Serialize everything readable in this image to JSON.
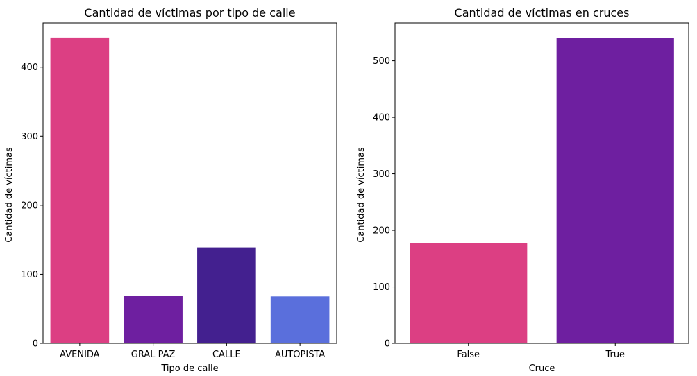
{
  "chart_data": [
    {
      "type": "bar",
      "title": "Cantidad de víctimas por tipo de calle",
      "xlabel": "Tipo de calle",
      "ylabel": "Cantidad de víctimas",
      "categories": [
        "AVENIDA",
        "GRAL PAZ",
        "CALLE",
        "AUTOPISTA"
      ],
      "values": [
        442,
        69,
        139,
        68
      ],
      "colors": [
        "#dc3f83",
        "#6e1fa0",
        "#43208f",
        "#5a6fdc"
      ],
      "ylim": [
        0,
        464
      ],
      "yticks": [
        0,
        100,
        200,
        300,
        400
      ],
      "grid": false,
      "legend": "none"
    },
    {
      "type": "bar",
      "title": "Cantidad de víctimas en cruces",
      "xlabel": "Cruce",
      "ylabel": "Cantidad de víctimas",
      "categories": [
        "False",
        "True"
      ],
      "values": [
        177,
        540
      ],
      "colors": [
        "#dc3f83",
        "#6e1fa0"
      ],
      "ylim": [
        0,
        567
      ],
      "yticks": [
        0,
        100,
        200,
        300,
        400,
        500
      ],
      "grid": false,
      "legend": "none"
    }
  ]
}
